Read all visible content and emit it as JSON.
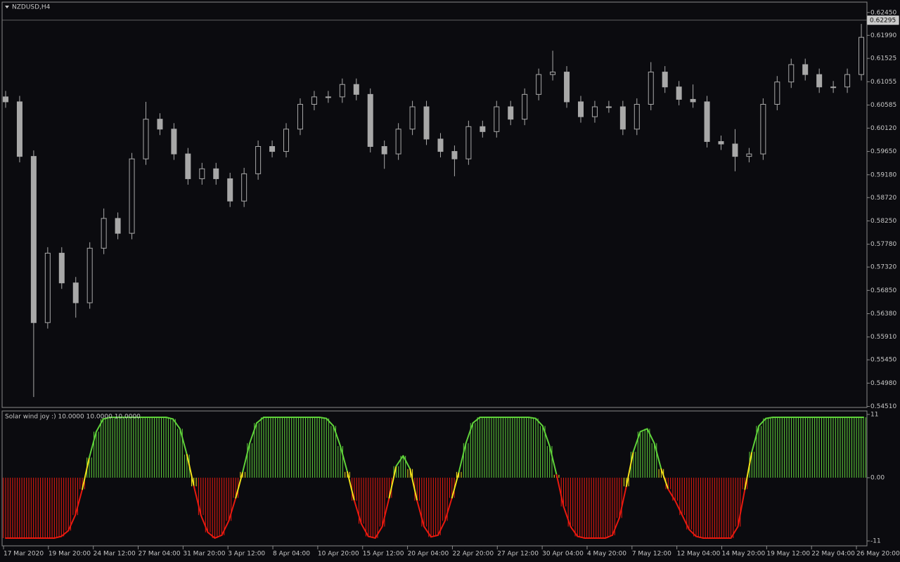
{
  "chart_data": [
    {
      "type": "candlestick",
      "title": "NZDUSD,H4",
      "color": "#a8a8a8",
      "open": [
        0.6075,
        0.6065,
        0.5955,
        0.562,
        0.576,
        0.57,
        0.566,
        0.577,
        0.583,
        0.58,
        0.595,
        0.603,
        0.601,
        0.596,
        0.591,
        0.593,
        0.591,
        0.5865,
        0.592,
        0.5975,
        0.5965,
        0.601,
        0.606,
        0.6075,
        0.6075,
        0.61,
        0.608,
        0.5975,
        0.596,
        0.601,
        0.6055,
        0.599,
        0.5965,
        0.595,
        0.6015,
        0.6005,
        0.6055,
        0.603,
        0.608,
        0.612,
        0.6125,
        0.6065,
        0.6035,
        0.6055,
        0.6055,
        0.601,
        0.606,
        0.6125,
        0.6095,
        0.607,
        0.6065,
        0.5985,
        0.598,
        0.5955,
        0.596,
        0.606,
        0.6105,
        0.614,
        0.612,
        0.6095,
        0.6095,
        0.612
      ],
      "high": [
        0.6087,
        0.6077,
        0.5967,
        0.5772,
        0.5772,
        0.5712,
        0.5782,
        0.585,
        0.5842,
        0.5962,
        0.6065,
        0.6042,
        0.6022,
        0.5972,
        0.5942,
        0.5942,
        0.5922,
        0.5932,
        0.5987,
        0.5987,
        0.6022,
        0.6072,
        0.6087,
        0.6087,
        0.6112,
        0.6112,
        0.6092,
        0.5987,
        0.6022,
        0.6067,
        0.6067,
        0.6002,
        0.5977,
        0.6027,
        0.6027,
        0.6067,
        0.6067,
        0.6092,
        0.6132,
        0.6168,
        0.6137,
        0.6077,
        0.6067,
        0.6067,
        0.6067,
        0.6072,
        0.6145,
        0.6137,
        0.6107,
        0.61,
        0.6077,
        0.5997,
        0.601,
        0.5972,
        0.6072,
        0.6117,
        0.6152,
        0.6152,
        0.6132,
        0.6107,
        0.6132,
        0.6222
      ],
      "low": [
        0.6053,
        0.5943,
        0.547,
        0.5608,
        0.5688,
        0.563,
        0.5648,
        0.5758,
        0.5788,
        0.5788,
        0.5938,
        0.5998,
        0.5948,
        0.5898,
        0.5898,
        0.5898,
        0.5853,
        0.5853,
        0.5908,
        0.5953,
        0.5953,
        0.5998,
        0.6048,
        0.6063,
        0.6063,
        0.6068,
        0.5963,
        0.593,
        0.5948,
        0.5998,
        0.5978,
        0.5953,
        0.5915,
        0.5938,
        0.5993,
        0.5993,
        0.6018,
        0.6018,
        0.6068,
        0.6108,
        0.6053,
        0.6023,
        0.6023,
        0.6043,
        0.5998,
        0.5998,
        0.6048,
        0.6083,
        0.6058,
        0.6053,
        0.5973,
        0.5968,
        0.5925,
        0.5943,
        0.5948,
        0.6048,
        0.6093,
        0.6108,
        0.6083,
        0.6083,
        0.6083,
        0.6108
      ],
      "close": [
        0.6065,
        0.5955,
        0.562,
        0.576,
        0.57,
        0.566,
        0.577,
        0.583,
        0.58,
        0.595,
        0.603,
        0.601,
        0.596,
        0.591,
        0.593,
        0.591,
        0.5865,
        0.592,
        0.5975,
        0.5965,
        0.601,
        0.606,
        0.6075,
        0.6075,
        0.61,
        0.608,
        0.5975,
        0.596,
        0.601,
        0.6055,
        0.599,
        0.5965,
        0.595,
        0.6015,
        0.6005,
        0.6055,
        0.603,
        0.608,
        0.612,
        0.6125,
        0.6065,
        0.6035,
        0.6055,
        0.6055,
        0.601,
        0.606,
        0.6125,
        0.6095,
        0.607,
        0.6065,
        0.5985,
        0.598,
        0.5955,
        0.596,
        0.606,
        0.6105,
        0.614,
        0.612,
        0.6095,
        0.6095,
        0.612,
        0.6195
      ],
      "xlim": [
        -0.25,
        61.4
      ],
      "xticks": [
        {
          "value": -0.15,
          "label": "17 Mar 2020"
        },
        {
          "value": 3.05,
          "label": "19 Mar 20:00"
        },
        {
          "value": 6.25,
          "label": "24 Mar 12:00"
        },
        {
          "value": 9.45,
          "label": "27 Mar 04:00"
        },
        {
          "value": 12.65,
          "label": "31 Mar 20:00"
        },
        {
          "value": 15.85,
          "label": "3 Apr 12:00"
        },
        {
          "value": 19.05,
          "label": "8 Apr 04:00"
        },
        {
          "value": 22.25,
          "label": "10 Apr 20:00"
        },
        {
          "value": 25.45,
          "label": "15 Apr 12:00"
        },
        {
          "value": 28.65,
          "label": "20 Apr 04:00"
        },
        {
          "value": 31.85,
          "label": "22 Apr 20:00"
        },
        {
          "value": 35.05,
          "label": "27 Apr 12:00"
        },
        {
          "value": 38.25,
          "label": "30 Apr 04:00"
        },
        {
          "value": 41.45,
          "label": "4 May 20:00"
        },
        {
          "value": 44.65,
          "label": "7 May 12:00"
        },
        {
          "value": 47.85,
          "label": "12 May 04:00"
        },
        {
          "value": 51.05,
          "label": "14 May 20:00"
        },
        {
          "value": 54.25,
          "label": "19 May 12:00"
        },
        {
          "value": 57.45,
          "label": "22 May 04:00"
        },
        {
          "value": 60.65,
          "label": "26 May 20:00"
        }
      ],
      "ylim": [
        0.5449,
        0.6266
      ],
      "yticks": [
        {
          "value": 0.6245,
          "label": "0.62450"
        },
        {
          "value": 0.6199,
          "label": "0.61990"
        },
        {
          "value": 0.61525,
          "label": "0.61525"
        },
        {
          "value": 0.61055,
          "label": "0.61055"
        },
        {
          "value": 0.60585,
          "label": "0.60585"
        },
        {
          "value": 0.6012,
          "label": "0.60120"
        },
        {
          "value": 0.5965,
          "label": "0.59650"
        },
        {
          "value": 0.5918,
          "label": "0.59180"
        },
        {
          "value": 0.5872,
          "label": "0.58720"
        },
        {
          "value": 0.5825,
          "label": "0.58250"
        },
        {
          "value": 0.5778,
          "label": "0.57780"
        },
        {
          "value": 0.5732,
          "label": "0.57320"
        },
        {
          "value": 0.5685,
          "label": "0.56850"
        },
        {
          "value": 0.5638,
          "label": "0.56380"
        },
        {
          "value": 0.5591,
          "label": "0.55910"
        },
        {
          "value": 0.5545,
          "label": "0.55450"
        },
        {
          "value": 0.5498,
          "label": "0.54980"
        },
        {
          "value": 0.5451,
          "label": "0.54510"
        }
      ],
      "last_price": {
        "value": 0.62295,
        "label": "0.62295"
      }
    },
    {
      "type": "bar",
      "title": "Solar wind joy :) 10.0000 10.0000 10.0000",
      "up_color": "#5fd23a",
      "down_color": "#e8190f",
      "neutral_color": "#f2e21a",
      "values": [
        -10.5,
        -10.5,
        -10.5,
        -10.5,
        -10.5,
        -10.5,
        -10.5,
        -10.5,
        -10.2,
        -9.2,
        -6.5,
        -2,
        3.5,
        8,
        10.2,
        10.5,
        10.5,
        10.5,
        10.5,
        10.5,
        10.5,
        10.5,
        10.5,
        10.5,
        10.2,
        8.5,
        4,
        -1.5,
        -6.5,
        -9.5,
        -10.5,
        -10,
        -7.5,
        -3.5,
        1,
        6,
        9.5,
        10.5,
        10.5,
        10.5,
        10.5,
        10.5,
        10.5,
        10.5,
        10.5,
        10.5,
        10.3,
        9,
        5.5,
        1,
        -4,
        -8,
        -10.2,
        -10.5,
        -8.5,
        -3.5,
        2,
        3.8,
        1.5,
        -4,
        -8.5,
        -10.3,
        -10,
        -7.5,
        -3.5,
        1,
        6,
        9.5,
        10.5,
        10.5,
        10.5,
        10.5,
        10.5,
        10.5,
        10.5,
        10.5,
        10.3,
        9,
        5.5,
        0.5,
        -5,
        -8.5,
        -10.2,
        -10.5,
        -10.5,
        -10.5,
        -10.5,
        -10,
        -7,
        -1.5,
        4.5,
        8,
        8.5,
        6,
        1.5,
        -2,
        -4,
        -6.5,
        -9,
        -10.2,
        -10.5,
        -10.5,
        -10.5,
        -10.5,
        -10.5,
        -8.5,
        -2,
        4.5,
        9,
        10.3,
        10.5,
        10.5,
        10.5,
        10.5,
        10.5,
        10.5,
        10.5,
        10.5,
        10.5,
        10.5,
        10.5,
        10.5,
        10.5,
        10.5
      ],
      "ylim": [
        -11.85,
        11.6
      ],
      "yticks": [
        11,
        {
          "value": 0,
          "label": "0.00"
        },
        -11
      ]
    }
  ]
}
